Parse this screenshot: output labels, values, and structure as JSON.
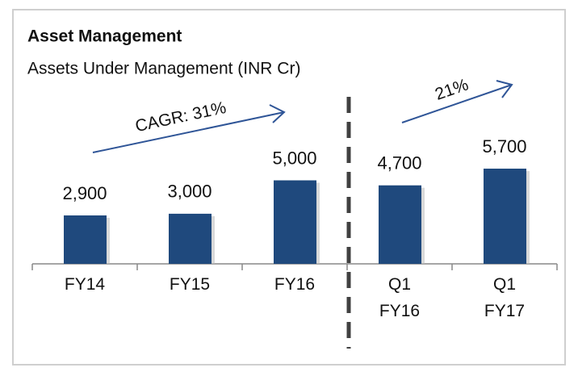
{
  "chart_data": {
    "type": "bar",
    "title": "Asset Management",
    "subtitle": "Assets Under Management (INR Cr)",
    "categories": [
      "FY14",
      "FY15",
      "FY16",
      "Q1 FY16",
      "Q1 FY17"
    ],
    "values": [
      2900,
      3000,
      5000,
      4700,
      5700
    ],
    "value_labels": [
      "2,900",
      "3,000",
      "5,000",
      "4,700",
      "5,700"
    ],
    "color": "#1f497d",
    "annotations": [
      "CAGR: 31%",
      "21%"
    ]
  }
}
